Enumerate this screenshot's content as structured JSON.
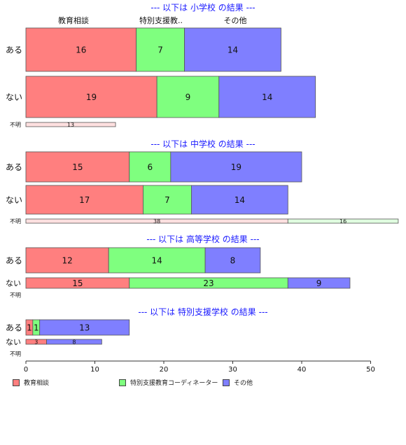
{
  "chart_data": {
    "type": "bar",
    "orientation": "horizontal",
    "stacked": true,
    "x_ticks": [
      0,
      10,
      20,
      30,
      40,
      50
    ],
    "xlim": [
      0,
      50
    ],
    "column_headers": [
      "教育相談",
      "特別支援教..",
      "その他"
    ],
    "colors": [
      "#ff7f7f",
      "#7fff7f",
      "#7f7fff"
    ],
    "unknown_colors": [
      "#ffe0e0",
      "#e0ffe0",
      "#e0e0ff"
    ],
    "legend": [
      {
        "name": "教育相談",
        "color": "#ff7f7f"
      },
      {
        "name": "特別支援教育コーディネーター",
        "color": "#7fff7f"
      },
      {
        "name": "その他",
        "color": "#7f7fff"
      }
    ],
    "panels": [
      {
        "title": "--- 以下は 小学校 の結果 ---",
        "rows": [
          {
            "label": "ある",
            "values": [
              16,
              7,
              14
            ]
          },
          {
            "label": "ない",
            "values": [
              19,
              9,
              14
            ]
          },
          {
            "label": "不明",
            "values": [
              13,
              0,
              0
            ]
          }
        ]
      },
      {
        "title": "--- 以下は 中学校 の結果 ---",
        "rows": [
          {
            "label": "ある",
            "values": [
              15,
              6,
              19
            ]
          },
          {
            "label": "ない",
            "values": [
              17,
              7,
              14
            ]
          },
          {
            "label": "不明",
            "values": [
              38,
              16,
              0
            ]
          }
        ]
      },
      {
        "title": "--- 以下は 高等学校 の結果 ---",
        "rows": [
          {
            "label": "ある",
            "values": [
              12,
              14,
              8
            ]
          },
          {
            "label": "ない",
            "values": [
              15,
              23,
              9
            ]
          },
          {
            "label": "不明",
            "values": [
              0,
              0,
              0
            ]
          }
        ]
      },
      {
        "title": "--- 以下は 特別支援学校 の結果 ---",
        "rows": [
          {
            "label": "ある",
            "values": [
              1,
              1,
              13
            ]
          },
          {
            "label": "ない",
            "values": [
              3,
              0,
              8
            ]
          },
          {
            "label": "不明",
            "values": [
              0,
              0,
              0
            ]
          }
        ]
      }
    ]
  }
}
